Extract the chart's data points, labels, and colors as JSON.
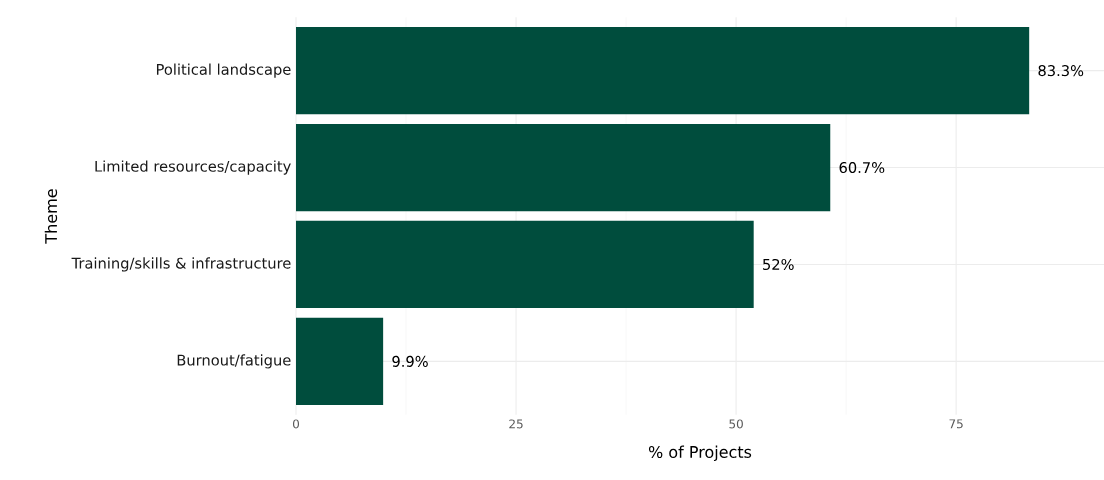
{
  "chart_data": {
    "type": "bar",
    "orientation": "horizontal",
    "xlabel": "% of Projects",
    "ylabel": "Theme",
    "categories": [
      "Political landscape",
      "Limited resources/capacity",
      "Training/skills & infrastructure",
      "Burnout/fatigue"
    ],
    "values": [
      83.3,
      60.7,
      52,
      9.9
    ],
    "value_labels": [
      "83.3%",
      "60.7%",
      "52%",
      "9.9%"
    ],
    "color": "#004d3d",
    "xlim": [
      0,
      91.8
    ],
    "xticks": [
      0,
      25,
      50,
      75
    ],
    "grid": true
  }
}
